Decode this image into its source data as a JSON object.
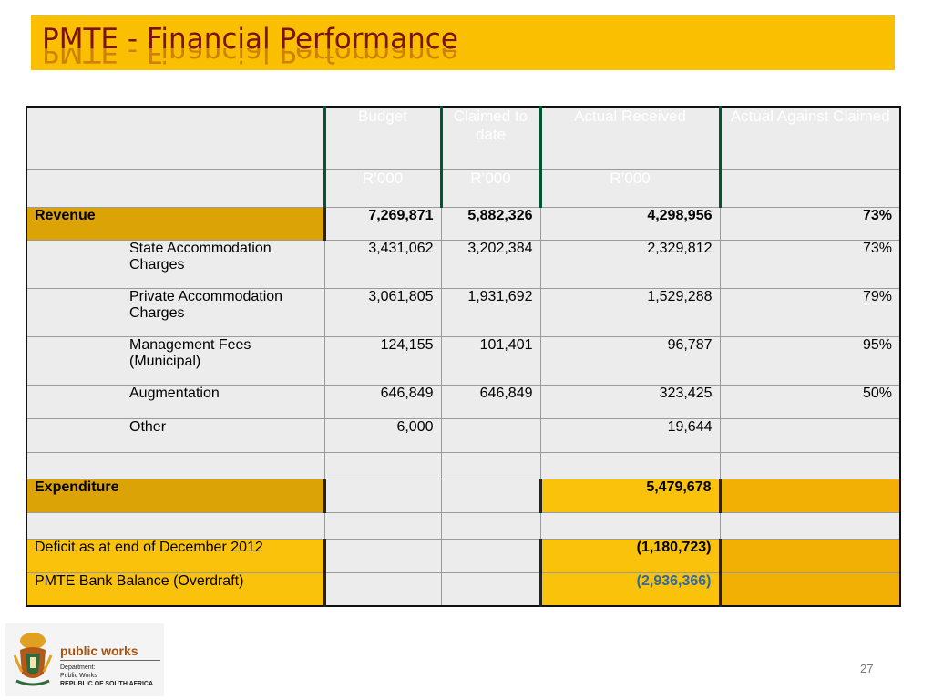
{
  "slide": {
    "title": "PMTE - Financial Performance",
    "page_number": "27"
  },
  "table": {
    "headers": [
      "Budget",
      "Claimed to date",
      "Actual Received",
      "Actual Against Claimed"
    ],
    "units": [
      "R’000",
      "R’000",
      "R’000",
      ""
    ],
    "revenue": {
      "label": "Revenue",
      "budget": "7,269,871",
      "claimed": "5,882,326",
      "received": "4,298,956",
      "pct": "73%"
    },
    "rows": [
      {
        "label": "State Accommodation Charges",
        "budget": "3,431,062",
        "claimed": "3,202,384",
        "received": "2,329,812",
        "pct": "73%"
      },
      {
        "label": "Private Accommodation Charges",
        "budget": "3,061,805",
        "claimed": "1,931,692",
        "received": "1,529,288",
        "pct": "79%"
      },
      {
        "label": "Management Fees (Municipal)",
        "budget": "124,155",
        "claimed": "101,401",
        "received": "96,787",
        "pct": "95%"
      },
      {
        "label": "Augmentation",
        "budget": "646,849",
        "claimed": "646,849",
        "received": "323,425",
        "pct": "50%"
      },
      {
        "label": "Other",
        "budget": "6,000",
        "claimed": "",
        "received": "19,644",
        "pct": ""
      }
    ],
    "expenditure": {
      "label": "Expenditure",
      "received": "5,479,678"
    },
    "deficit": {
      "label": "Deficit as at end of December 2012",
      "received": "(1,180,723)"
    },
    "bank": {
      "label": "PMTE Bank Balance (Overdraft)",
      "received": "(2,936,366)"
    }
  },
  "logo": {
    "brand": "public works",
    "line1": "Department:",
    "line2": "Public Works",
    "line3": "REPUBLIC OF SOUTH AFRICA"
  },
  "colors": {
    "title_bar": "#fbbf01",
    "header_green": "#0aa04a",
    "gold": "#dba305",
    "title_text": "#7a1212"
  }
}
